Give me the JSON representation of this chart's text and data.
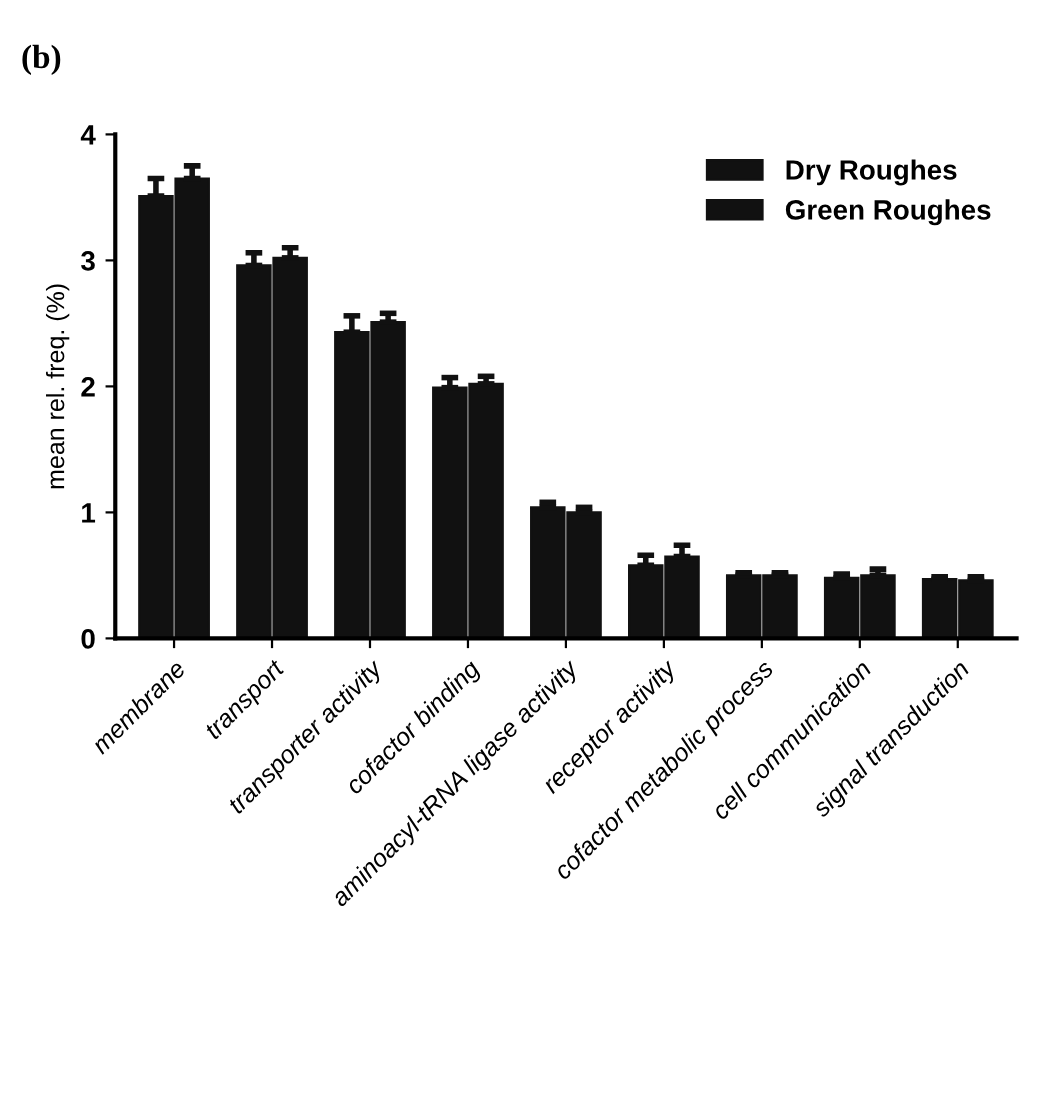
{
  "chart_data": {
    "type": "bar",
    "title": "(b)",
    "ylabel": "mean rel. freq. (%)",
    "categories": [
      "membrane",
      "transport",
      "transporter activity",
      "cofactor binding",
      "aminoacyl-tRNA ligase activity",
      "receptor activity",
      "cofactor metabolic process",
      "cell communication",
      "signal transduction"
    ],
    "series": [
      {
        "name": "Dry Roughes",
        "color": "#111111",
        "values": [
          3.51,
          2.96,
          2.43,
          1.99,
          1.04,
          0.58,
          0.5,
          0.48,
          0.47
        ],
        "errors": [
          0.14,
          0.1,
          0.13,
          0.08,
          0.04,
          0.08,
          0.02,
          0.03,
          0.02
        ]
      },
      {
        "name": "Green Roughes",
        "color": "#111111",
        "values": [
          3.65,
          3.02,
          2.51,
          2.02,
          1.0,
          0.65,
          0.5,
          0.5,
          0.46
        ],
        "errors": [
          0.1,
          0.08,
          0.07,
          0.06,
          0.04,
          0.09,
          0.02,
          0.05,
          0.03
        ]
      }
    ],
    "ylim": [
      0,
      4
    ],
    "yticks": [
      0,
      1,
      2,
      3,
      4
    ],
    "grid": false,
    "legend": "top right"
  }
}
